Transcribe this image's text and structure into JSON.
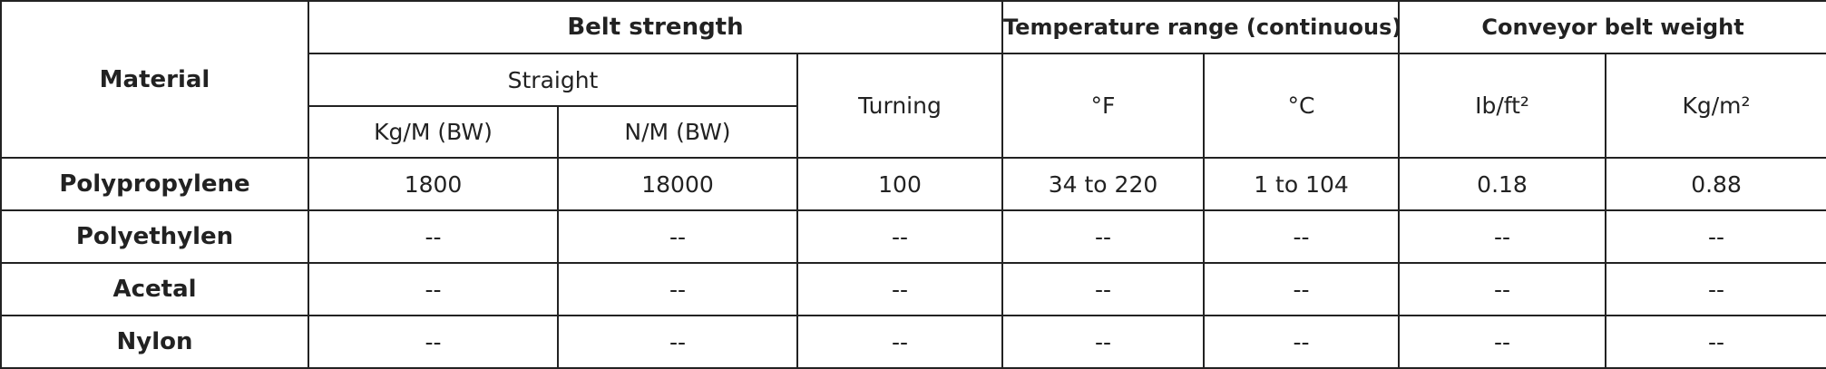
{
  "table": {
    "header_rows": [
      [
        "Material",
        "Belt strength",
        "Temperature range (continuous)",
        "Conveyor belt weight"
      ],
      [
        "Straight",
        "Turning",
        "°F",
        "°C",
        "Ib/ft²",
        "Kg/m²"
      ],
      [
        "Kg/M (BW)",
        "N/M (BW)"
      ]
    ],
    "rows": [
      [
        "Polypropylene",
        "1800",
        "18000",
        "100",
        "34 to 220",
        "1 to 104",
        "0.18",
        "0.88"
      ],
      [
        "Polyethylen",
        "--",
        "--",
        "--",
        "--",
        "--",
        "--",
        "--"
      ],
      [
        "Acetal",
        "--",
        "--",
        "--",
        "--",
        "--",
        "--",
        "--"
      ],
      [
        "Nylon",
        "--",
        "--",
        "--",
        "--",
        "--",
        "--",
        "--"
      ]
    ]
  }
}
